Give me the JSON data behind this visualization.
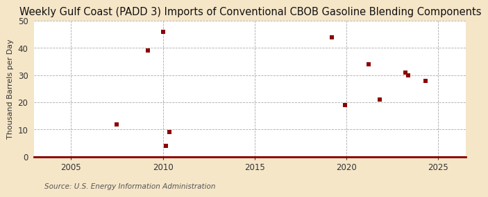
{
  "title": "Weekly Gulf Coast (PADD 3) Imports of Conventional CBOB Gasoline Blending Components",
  "ylabel": "Thousand Barrels per Day",
  "source": "Source: U.S. Energy Information Administration",
  "outer_bg_color": "#f5e6c8",
  "plot_bg_color": "#ffffff",
  "scatter_color": "#8b0000",
  "axis_line_color": "#8b0000",
  "grid_color": "#aaaaaa",
  "tick_color": "#333333",
  "xlim": [
    2003.0,
    2026.5
  ],
  "ylim": [
    0,
    50
  ],
  "xticks": [
    2005,
    2010,
    2015,
    2020,
    2025
  ],
  "yticks": [
    0,
    10,
    20,
    30,
    40,
    50
  ],
  "x_data": [
    2007.5,
    2009.2,
    2010.0,
    2010.15,
    2010.35,
    2019.2,
    2019.9,
    2021.2,
    2021.8,
    2023.2,
    2023.35,
    2024.3
  ],
  "y_data": [
    12,
    39,
    46,
    4,
    9,
    44,
    19,
    34,
    21,
    31,
    30,
    28
  ],
  "marker_size": 18,
  "title_fontsize": 10.5,
  "label_fontsize": 8,
  "tick_fontsize": 8.5,
  "source_fontsize": 7.5
}
